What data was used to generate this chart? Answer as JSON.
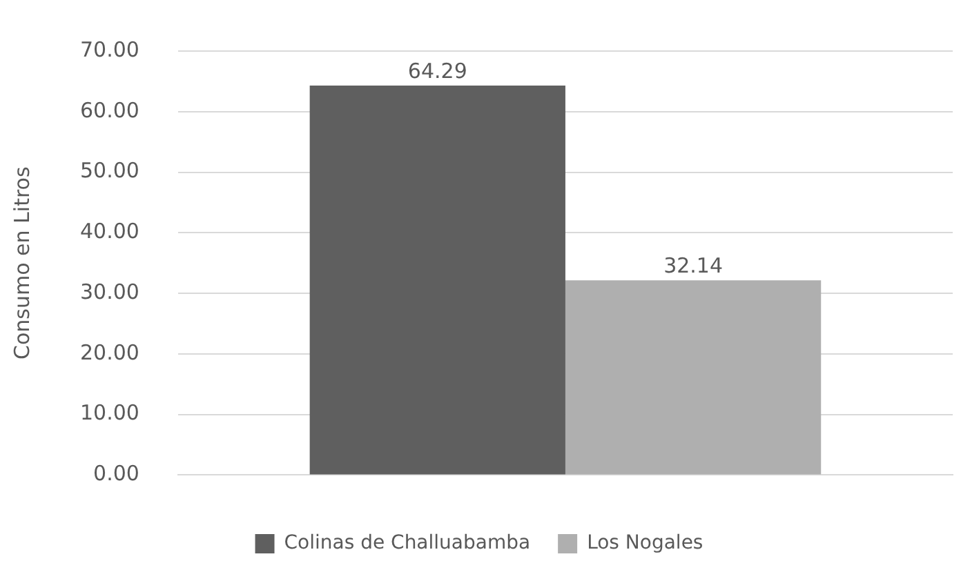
{
  "chart_data": {
    "type": "bar",
    "ylabel": "Consumo en Litros",
    "categories": [
      null
    ],
    "series": [
      {
        "name": "Colinas de Challuabamba",
        "color": "#5f5f5f",
        "values": [
          64.29
        ]
      },
      {
        "name": "Los Nogales",
        "color": "#afafaf",
        "values": [
          32.14
        ]
      }
    ],
    "ylim": [
      0,
      70
    ],
    "yticks": [
      {
        "value": 0,
        "label": "0.00"
      },
      {
        "value": 10,
        "label": "10.00"
      },
      {
        "value": 20,
        "label": "20.00"
      },
      {
        "value": 30,
        "label": "30.00"
      },
      {
        "value": 40,
        "label": "40.00"
      },
      {
        "value": 50,
        "label": "50.00"
      },
      {
        "value": 60,
        "label": "60.00"
      },
      {
        "value": 70,
        "label": "70.00"
      }
    ],
    "grid": "y",
    "legend": "bottom",
    "data_labels": true
  }
}
